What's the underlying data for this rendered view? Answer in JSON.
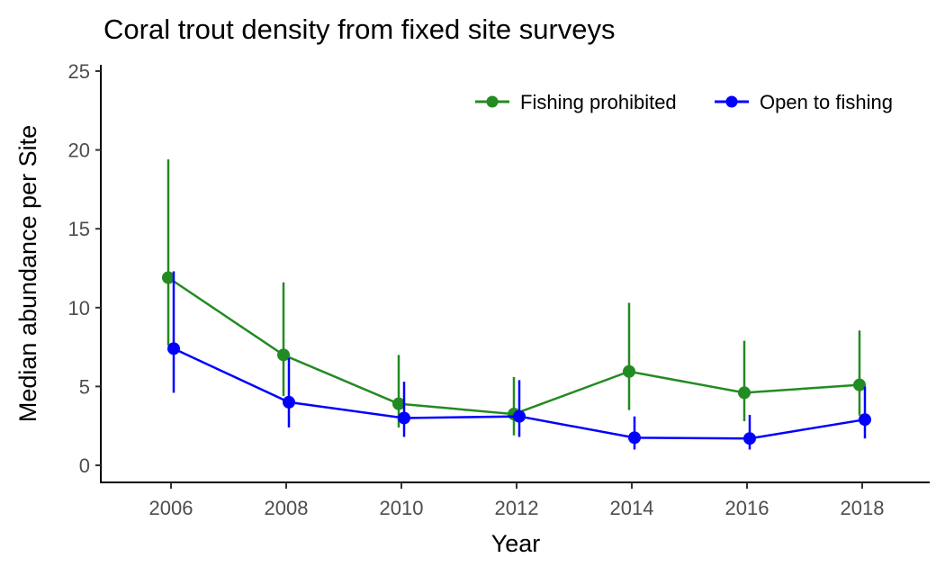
{
  "chart_data": {
    "type": "line",
    "title": "Coral trout density from fixed site surveys",
    "xlabel": "Year",
    "ylabel": "Median abundance per Site",
    "x": [
      2006,
      2008,
      2010,
      2012,
      2014,
      2016,
      2018
    ],
    "xticks": [
      "2006",
      "2008",
      "2010",
      "2012",
      "2014",
      "2016",
      "2018"
    ],
    "xlim": [
      2005,
      2019.2
    ],
    "yticks": [
      "0",
      "5",
      "10",
      "15",
      "20",
      "25"
    ],
    "ylim": [
      -1.1,
      25.3
    ],
    "grid": false,
    "legend": {
      "position": "top-right",
      "orientation": "horizontal"
    },
    "series": [
      {
        "name": "Fishing prohibited",
        "color": "#228B22",
        "values": [
          11.9,
          7.0,
          3.9,
          3.25,
          5.95,
          4.6,
          5.1
        ],
        "lower": [
          7.6,
          4.4,
          2.4,
          1.9,
          3.5,
          2.8,
          3.15
        ],
        "upper": [
          19.4,
          11.6,
          7.0,
          5.6,
          10.3,
          7.9,
          8.55
        ]
      },
      {
        "name": "Open to fishing",
        "color": "#0000FF",
        "values": [
          7.4,
          4.0,
          3.0,
          3.1,
          1.75,
          1.7,
          2.9
        ],
        "lower": [
          4.6,
          2.4,
          1.8,
          1.8,
          1.0,
          1.0,
          1.7
        ],
        "upper": [
          12.3,
          6.8,
          5.3,
          5.4,
          3.1,
          3.2,
          5.0
        ]
      }
    ]
  }
}
